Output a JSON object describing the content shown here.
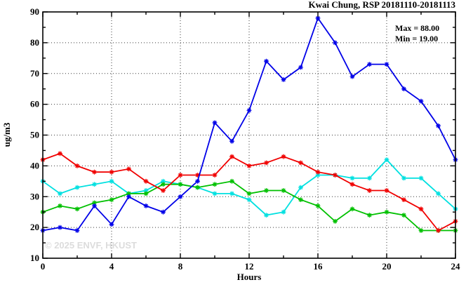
{
  "title": "Kwai Chung, RSP 20181110-20181113",
  "annotation": {
    "max_label": "Max = 88.00",
    "min_label": "Min = 19.00"
  },
  "watermark": "© 2025 ENVF, HKUST",
  "chart_data": {
    "type": "line",
    "title": "Kwai Chung, RSP 20181110-20181113",
    "xlabel": "Hours",
    "ylabel": "ug/m3",
    "xlim": [
      0,
      24
    ],
    "ylim": [
      10,
      90
    ],
    "x": [
      0,
      1,
      2,
      3,
      4,
      5,
      6,
      7,
      8,
      9,
      10,
      11,
      12,
      13,
      14,
      15,
      16,
      17,
      18,
      19,
      20,
      21,
      22,
      23,
      24
    ],
    "series": [
      {
        "name": "series-cyan",
        "color": "#00e0e0",
        "values": [
          35,
          31,
          33,
          34,
          35,
          31,
          32,
          35,
          34,
          33,
          31,
          31,
          29,
          24,
          25,
          33,
          37,
          37,
          36,
          36,
          42,
          36,
          36,
          31,
          26
        ]
      },
      {
        "name": "series-green",
        "color": "#00c000",
        "values": [
          25,
          27,
          26,
          28,
          29,
          31,
          31,
          34,
          34,
          33,
          34,
          35,
          31,
          32,
          32,
          29,
          27,
          22,
          26,
          24,
          25,
          24,
          19,
          19,
          19
        ]
      },
      {
        "name": "series-red",
        "color": "#f00000",
        "values": [
          42,
          44,
          40,
          38,
          38,
          39,
          35,
          32,
          37,
          37,
          37,
          43,
          40,
          41,
          43,
          41,
          38,
          37,
          34,
          32,
          32,
          29,
          26,
          19,
          22
        ]
      },
      {
        "name": "series-blue",
        "color": "#0000e8",
        "values": [
          19,
          20,
          19,
          27,
          21,
          30,
          27,
          25,
          30,
          35,
          54,
          48,
          58,
          74,
          68,
          72,
          88,
          80,
          69,
          73,
          73,
          65,
          61,
          53,
          42
        ]
      }
    ],
    "xticks_major": [
      0,
      4,
      8,
      12,
      16,
      20,
      24
    ],
    "xtick_minor_step": 2,
    "yticks_major": [
      10,
      20,
      30,
      40,
      50,
      60,
      70,
      80,
      90
    ],
    "ytick_minor_step": 5,
    "grid_x": [
      4,
      8,
      12,
      16,
      20
    ],
    "grid_y": [
      20,
      30,
      40,
      50,
      60,
      70,
      80
    ],
    "grid_style": "dotted",
    "legend_position": "none",
    "max": 88.0,
    "min": 19.0
  }
}
